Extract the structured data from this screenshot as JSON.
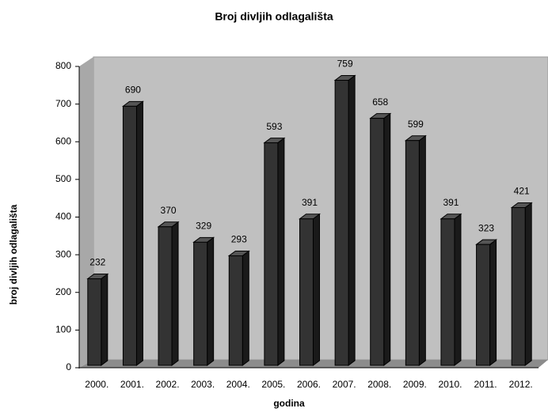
{
  "chart_data": {
    "type": "bar3d",
    "title": "Broj divljih odlagališta",
    "x_label": "godina",
    "y_label": "broj divljih odlagališta",
    "categories": [
      "2000.",
      "2001.",
      "2002.",
      "2003.",
      "2004.",
      "2005.",
      "2006.",
      "2007.",
      "2008.",
      "2009.",
      "2010.",
      "2011.",
      "2012."
    ],
    "values": [
      232,
      690,
      370,
      329,
      293,
      593,
      391,
      759,
      658,
      599,
      391,
      323,
      421
    ],
    "color": "#333333",
    "ylim": [
      0,
      800
    ],
    "yticks": [
      0,
      100,
      200,
      300,
      400,
      500,
      600,
      700,
      800
    ],
    "grid": false
  }
}
